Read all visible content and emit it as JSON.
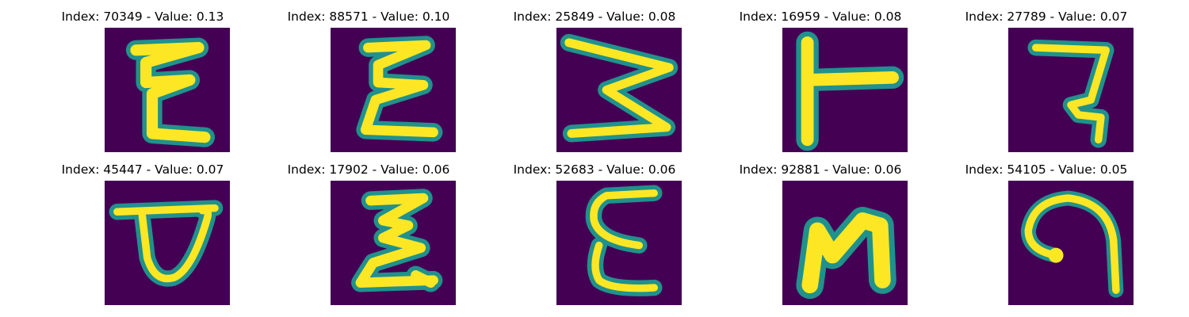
{
  "figure": {
    "colormap": {
      "background": "#440154",
      "mid": "#21918c",
      "edge": "#5ec962",
      "stroke": "#fde725"
    },
    "panels": [
      {
        "index": "70349",
        "value": "0.13",
        "title": "Index: 70349 - Value: 0.13",
        "glyph": "sigma-like-stroke"
      },
      {
        "index": "88571",
        "value": "0.10",
        "title": "Index: 88571 - Value: 0.10",
        "glyph": "sigma-like-stroke"
      },
      {
        "index": "25849",
        "value": "0.08",
        "title": "Index: 25849 - Value: 0.08",
        "glyph": "sideways-w-stroke"
      },
      {
        "index": "16959",
        "value": "0.08",
        "title": "Index: 16959 - Value: 0.08",
        "glyph": "sideways-t-stroke"
      },
      {
        "index": "27789",
        "value": "0.07",
        "title": "Index: 27789 - Value: 0.07",
        "glyph": "hook-stroke"
      },
      {
        "index": "45447",
        "value": "0.07",
        "title": "Index: 45447 - Value: 0.07",
        "glyph": "loop-p-stroke"
      },
      {
        "index": "17902",
        "value": "0.06",
        "title": "Index: 17902 - Value: 0.06",
        "glyph": "sigma-like-stroke"
      },
      {
        "index": "52683",
        "value": "0.06",
        "title": "Index: 52683 - Value: 0.06",
        "glyph": "epsilon-stroke"
      },
      {
        "index": "92881",
        "value": "0.06",
        "title": "Index: 92881 - Value: 0.06",
        "glyph": "n-stroke"
      },
      {
        "index": "54105",
        "value": "0.05",
        "title": "Index: 54105 - Value: 0.05",
        "glyph": "spiral-stroke"
      }
    ]
  }
}
